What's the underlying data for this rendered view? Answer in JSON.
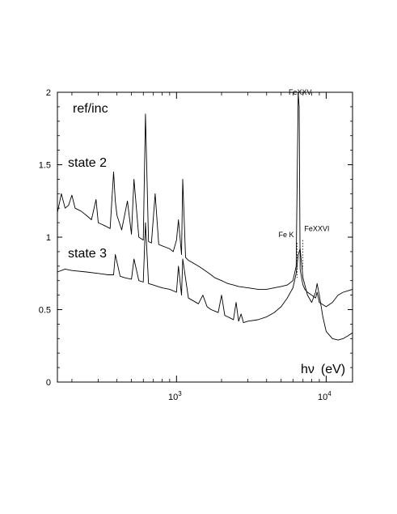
{
  "chart_data": {
    "type": "line",
    "title": "",
    "ylabel": "ref/inc",
    "xlabel_prefix": "h",
    "xlabel_nu": "ν",
    "xlabel_unit": "(eV)",
    "xscale": "log",
    "xlim": [
      160,
      15000
    ],
    "ylim": [
      0,
      2
    ],
    "yticks": [
      {
        "value": 0,
        "label": "0"
      },
      {
        "value": 0.5,
        "label": "0.5"
      },
      {
        "value": 1,
        "label": "1"
      },
      {
        "value": 1.5,
        "label": "1.5"
      },
      {
        "value": 2,
        "label": "2"
      }
    ],
    "xticks": [
      {
        "value": 1000,
        "base": "10",
        "exp": "3"
      },
      {
        "value": 10000,
        "base": "10",
        "exp": "4"
      }
    ],
    "grid": false,
    "series": [
      {
        "name": "state 2",
        "x": [
          160,
          170,
          180,
          190,
          200,
          210,
          230,
          250,
          270,
          290,
          300,
          330,
          360,
          380,
          390,
          400,
          430,
          470,
          500,
          520,
          560,
          600,
          620,
          650,
          680,
          720,
          760,
          800,
          850,
          900,
          950,
          1000,
          1030,
          1080,
          1100,
          1150,
          1200,
          1300,
          1400,
          1500,
          1600,
          1700,
          1800,
          1900,
          2000,
          2100,
          2200,
          2400,
          2600,
          3000,
          3500,
          4000,
          4500,
          5000,
          5500,
          6000,
          6300,
          6500,
          6600,
          6700,
          6800,
          6900,
          7000,
          7200,
          7500,
          8000,
          8500,
          8700,
          9000,
          10000,
          11000,
          12000,
          13000,
          14000,
          15000
        ],
        "y": [
          1.17,
          1.3,
          1.2,
          1.22,
          1.29,
          1.2,
          1.18,
          1.15,
          1.12,
          1.26,
          1.1,
          1.08,
          1.06,
          1.45,
          1.25,
          1.15,
          1.05,
          1.25,
          1.02,
          1.4,
          1.0,
          0.98,
          1.85,
          0.97,
          0.96,
          1.3,
          0.95,
          0.94,
          0.93,
          0.92,
          0.9,
          0.98,
          1.12,
          0.88,
          1.4,
          0.86,
          0.84,
          0.82,
          0.8,
          0.78,
          0.76,
          0.74,
          0.72,
          0.71,
          0.7,
          0.69,
          0.68,
          0.67,
          0.66,
          0.65,
          0.64,
          0.64,
          0.65,
          0.66,
          0.67,
          0.7,
          0.8,
          2.0,
          1.9,
          0.78,
          0.74,
          0.7,
          0.67,
          0.64,
          0.62,
          0.6,
          0.58,
          0.62,
          0.55,
          0.52,
          0.55,
          0.6,
          0.62,
          0.63,
          0.64
        ]
      },
      {
        "name": "state 3",
        "x": [
          160,
          180,
          200,
          250,
          300,
          350,
          380,
          390,
          420,
          450,
          500,
          520,
          560,
          600,
          620,
          650,
          700,
          750,
          800,
          900,
          1000,
          1030,
          1080,
          1100,
          1200,
          1300,
          1400,
          1500,
          1600,
          1700,
          1800,
          1900,
          2000,
          2100,
          2200,
          2300,
          2400,
          2500,
          2600,
          2700,
          2800,
          3000,
          3500,
          4000,
          4500,
          5000,
          5500,
          6000,
          6300,
          6500,
          6700,
          6800,
          7000,
          7500,
          8000,
          8500,
          8700,
          9000,
          9500,
          10000,
          11000,
          12000,
          13000,
          14000,
          15000
        ],
        "y": [
          0.76,
          0.78,
          0.77,
          0.76,
          0.75,
          0.74,
          0.74,
          0.88,
          0.73,
          0.72,
          0.71,
          0.85,
          0.7,
          0.69,
          1.1,
          0.68,
          0.67,
          0.66,
          0.65,
          0.64,
          0.62,
          0.8,
          0.6,
          0.85,
          0.58,
          0.56,
          0.54,
          0.6,
          0.52,
          0.5,
          0.49,
          0.48,
          0.6,
          0.46,
          0.45,
          0.44,
          0.43,
          0.55,
          0.42,
          0.47,
          0.41,
          0.42,
          0.43,
          0.45,
          0.48,
          0.52,
          0.58,
          0.65,
          0.75,
          0.88,
          0.92,
          0.85,
          0.72,
          0.6,
          0.55,
          0.62,
          0.68,
          0.6,
          0.45,
          0.35,
          0.3,
          0.29,
          0.3,
          0.32,
          0.34
        ]
      }
    ],
    "annotations": [
      {
        "text": "FeXXV",
        "x": 6700,
        "y": 1.96
      },
      {
        "text": "Fe K",
        "x": 6400,
        "y": 1.0
      },
      {
        "text": "FeXXVI",
        "x": 6970,
        "y": 1.02
      }
    ],
    "series_labels": [
      {
        "text": "state 2"
      },
      {
        "text": "state 3"
      }
    ]
  }
}
